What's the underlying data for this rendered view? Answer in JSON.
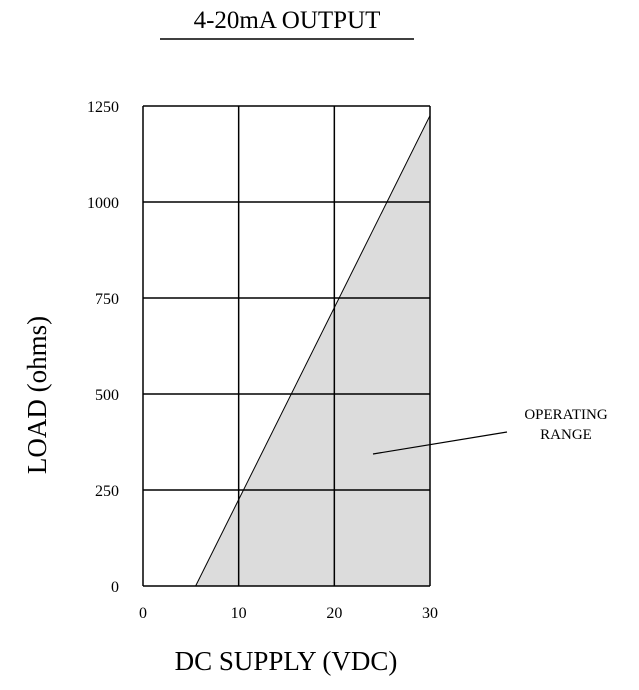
{
  "chart_data": {
    "type": "area",
    "title": "4-20mA OUTPUT",
    "xlabel": "DC SUPPLY (VDC)",
    "ylabel": "LOAD (ohms)",
    "xlim": [
      0,
      30
    ],
    "ylim": [
      0,
      1250
    ],
    "xticks": [
      0,
      10,
      20,
      30
    ],
    "yticks": [
      0,
      250,
      500,
      750,
      1000,
      1250
    ],
    "grid": true,
    "series": [
      {
        "x": [
          5.5,
          30
        ],
        "y": [
          0,
          1225
        ]
      }
    ],
    "fill": "below-line",
    "annotation": {
      "lines": [
        "OPERATING",
        "RANGE"
      ]
    },
    "colors": {
      "fill": "#dcdcdc",
      "grid": "#000000",
      "line": "#000000"
    }
  }
}
